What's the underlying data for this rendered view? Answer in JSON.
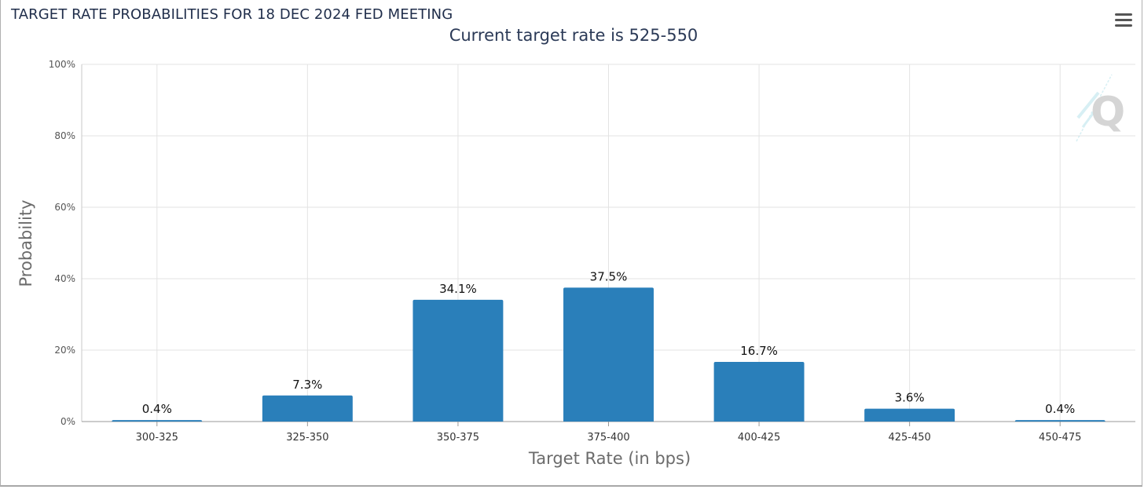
{
  "header": {
    "title": "TARGET RATE PROBABILITIES FOR 18 DEC 2024 FED MEETING",
    "menu_icon": "hamburger-menu-icon"
  },
  "chart_data": {
    "type": "bar",
    "title": "Current target rate is 525-550",
    "xlabel": "Target Rate (in bps)",
    "ylabel": "Probability",
    "categories": [
      "300-325",
      "325-350",
      "350-375",
      "375-400",
      "400-425",
      "425-450",
      "450-475"
    ],
    "values": [
      0.4,
      7.3,
      34.1,
      37.5,
      16.7,
      3.6,
      0.4
    ],
    "data_labels": [
      "0.4%",
      "7.3%",
      "34.1%",
      "37.5%",
      "16.7%",
      "3.6%",
      "0.4%"
    ],
    "ylim": [
      0,
      100
    ],
    "yticks": [
      0,
      20,
      40,
      60,
      80,
      100
    ],
    "ytick_labels": [
      "0%",
      "20%",
      "40%",
      "60%",
      "80%",
      "100%"
    ],
    "grid": true,
    "bar_color": "#2a7fba",
    "watermark_icon": "q-logo-icon"
  }
}
